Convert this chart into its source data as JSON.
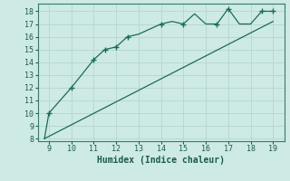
{
  "title": "",
  "xlabel": "Humidex (Indice chaleur)",
  "background_color": "#ceeae4",
  "grid_color": "#b8d8d2",
  "line_color": "#1a6b5a",
  "xlim": [
    8.5,
    19.5
  ],
  "ylim": [
    7.8,
    18.6
  ],
  "xticks": [
    9,
    10,
    11,
    12,
    13,
    14,
    15,
    16,
    17,
    18,
    19
  ],
  "yticks": [
    8,
    9,
    10,
    11,
    12,
    13,
    14,
    15,
    16,
    17,
    18
  ],
  "curve1_x": [
    8.8,
    9.0,
    10.0,
    11.0,
    11.5,
    12.0,
    12.5,
    13.0,
    14.0,
    14.5,
    15.0,
    15.5,
    16.0,
    16.5,
    17.0,
    17.5,
    18.0,
    18.5,
    19.0
  ],
  "curve1_y": [
    8.0,
    10.0,
    12.0,
    14.2,
    15.0,
    15.2,
    16.0,
    16.2,
    17.0,
    17.2,
    17.0,
    17.8,
    17.0,
    17.0,
    18.2,
    17.0,
    17.0,
    18.0,
    18.0
  ],
  "curve2_x": [
    8.8,
    19.0
  ],
  "curve2_y": [
    8.0,
    17.2
  ],
  "marker_x": [
    9.0,
    10.0,
    11.0,
    11.5,
    12.0,
    12.5,
    14.0,
    15.0,
    16.5,
    17.0,
    18.5,
    19.0
  ],
  "marker_y": [
    10.0,
    12.0,
    14.2,
    15.0,
    15.2,
    16.0,
    17.0,
    17.0,
    17.0,
    18.2,
    18.0,
    18.0
  ]
}
